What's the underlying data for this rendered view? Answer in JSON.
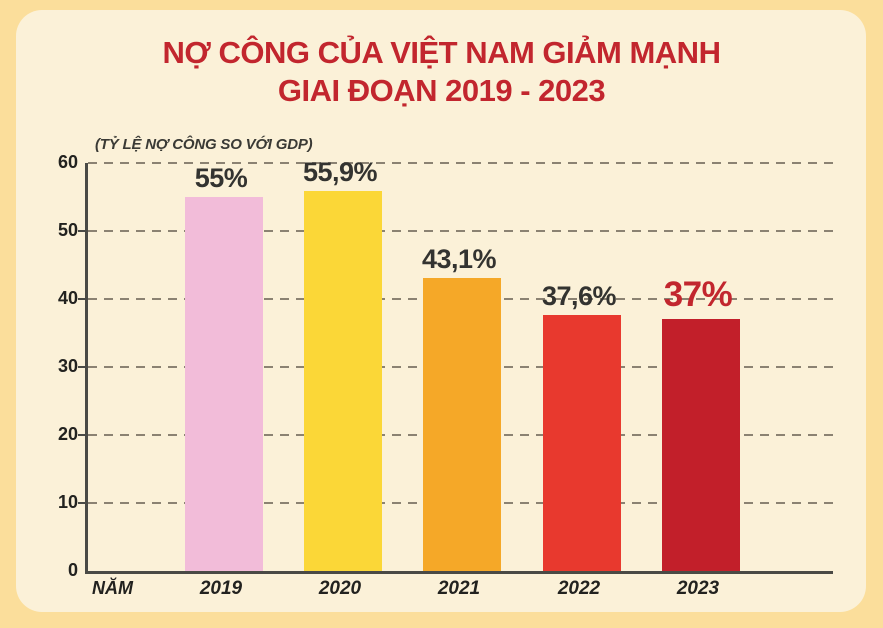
{
  "page": {
    "background_color": "#FBDE9B",
    "card_background_color": "#FBF1D8"
  },
  "header": {
    "title_line1": "NỢ CÔNG CỦA VIỆT NAM GIẢM MẠNH",
    "title_line2": "GIAI ĐOẠN 2019 - 2023",
    "title_color": "#C2262E"
  },
  "chart_data": {
    "type": "bar",
    "title": "NỢ CÔNG CỦA VIỆT NAM GIẢM MẠNH GIAI ĐOẠN 2019 - 2023",
    "subtitle": "(TỶ LỆ NỢ CÔNG SO VỚI GDP)",
    "xlabel": "NĂM",
    "categories": [
      "2019",
      "2020",
      "2021",
      "2022",
      "2023"
    ],
    "values": [
      55,
      55.9,
      43.1,
      37.6,
      37
    ],
    "value_labels": [
      "55%",
      "55,9%",
      "43,1%",
      "37,6%",
      "37%"
    ],
    "bar_colors": [
      "#F2BCD9",
      "#FBD737",
      "#F5A828",
      "#E8392E",
      "#C21F2A"
    ],
    "value_label_colors": [
      "#333330",
      "#333330",
      "#333330",
      "#333330",
      "#C2262E"
    ],
    "ylim": [
      0,
      60
    ],
    "yticks": [
      0,
      10,
      20,
      30,
      40,
      50,
      60
    ],
    "grid": "dashed-horizontal",
    "gridline_color": "#8B8272",
    "axis_color": "#4A4A45",
    "legend": "none"
  }
}
